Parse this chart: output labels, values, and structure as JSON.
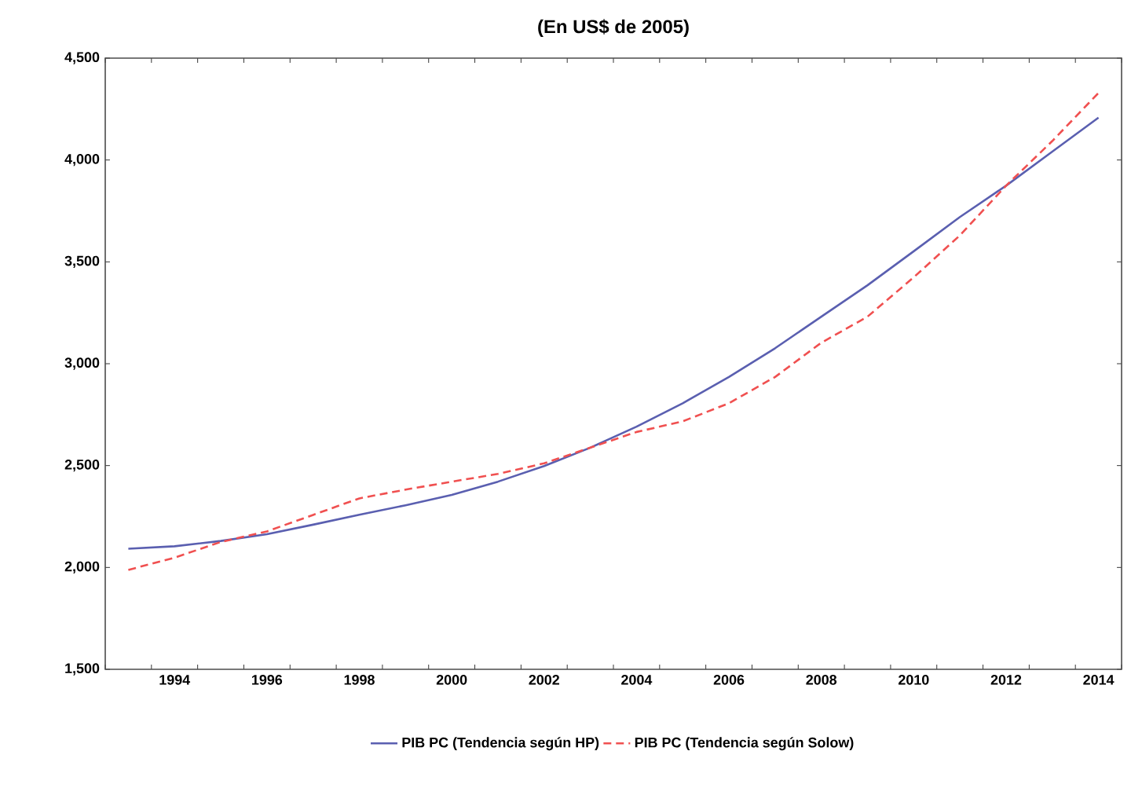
{
  "chart_data": {
    "type": "line",
    "title": "(En US$ de 2005)",
    "x": [
      1993,
      1994,
      1995,
      1996,
      1997,
      1998,
      1999,
      2000,
      2001,
      2002,
      2003,
      2004,
      2005,
      2006,
      2007,
      2008,
      2009,
      2010,
      2011,
      2012,
      2013,
      2014
    ],
    "series": [
      {
        "name": "PIB PC (Tendencia según HP)",
        "color": "#5a5fb0",
        "line_style": "solid",
        "values": [
          2092,
          2104,
          2130,
          2163,
          2210,
          2259,
          2305,
          2356,
          2421,
          2498,
          2588,
          2691,
          2806,
          2935,
          3076,
          3231,
          3385,
          3552,
          3720,
          3874,
          4041,
          4208
        ]
      },
      {
        "name": "PIB PC (Tendencia según Solow)",
        "color": "#f05050",
        "line_style": "dashed",
        "values": [
          1988,
          2048,
          2125,
          2177,
          2258,
          2339,
          2382,
          2421,
          2459,
          2511,
          2588,
          2665,
          2717,
          2806,
          2935,
          3103,
          3231,
          3424,
          3630,
          3874,
          4093,
          4329
        ]
      }
    ],
    "xlim": [
      1992.5,
      2014.5
    ],
    "xticks": [
      {
        "value": 1994,
        "label": "1994"
      },
      {
        "value": 1996,
        "label": "1996"
      },
      {
        "value": 1998,
        "label": "1998"
      },
      {
        "value": 2000,
        "label": "2000"
      },
      {
        "value": 2002,
        "label": "2002"
      },
      {
        "value": 2004,
        "label": "2004"
      },
      {
        "value": 2006,
        "label": "2006"
      },
      {
        "value": 2008,
        "label": "2008"
      },
      {
        "value": 2010,
        "label": "2010"
      },
      {
        "value": 2012,
        "label": "2012"
      },
      {
        "value": 2014,
        "label": "2014"
      },
      {
        "value": 1992.5,
        "label": null
      },
      {
        "value": 1993.5,
        "label": null
      },
      {
        "value": 1994.5,
        "label": null
      },
      {
        "value": 1995.5,
        "label": null
      },
      {
        "value": 1996.5,
        "label": null
      },
      {
        "value": 1997.5,
        "label": null
      },
      {
        "value": 1998.5,
        "label": null
      },
      {
        "value": 1999.5,
        "label": null
      },
      {
        "value": 2000.5,
        "label": null
      },
      {
        "value": 2001.5,
        "label": null
      },
      {
        "value": 2002.5,
        "label": null
      },
      {
        "value": 2003.5,
        "label": null
      },
      {
        "value": 2004.5,
        "label": null
      },
      {
        "value": 2005.5,
        "label": null
      },
      {
        "value": 2006.5,
        "label": null
      },
      {
        "value": 2007.5,
        "label": null
      },
      {
        "value": 2008.5,
        "label": null
      },
      {
        "value": 2009.5,
        "label": null
      },
      {
        "value": 2010.5,
        "label": null
      },
      {
        "value": 2011.5,
        "label": null
      },
      {
        "value": 2012.5,
        "label": null
      },
      {
        "value": 2013.5,
        "label": null
      },
      {
        "value": 2014.5,
        "label": null
      }
    ],
    "ylim": [
      1500,
      4500
    ],
    "yticks": [
      {
        "value": 1500,
        "label": "1,500"
      },
      {
        "value": 2000,
        "label": "2,000"
      },
      {
        "value": 2500,
        "label": "2,500"
      },
      {
        "value": 3000,
        "label": "3,000"
      },
      {
        "value": 3500,
        "label": "3,500"
      },
      {
        "value": 4000,
        "label": "4,000"
      },
      {
        "value": 4500,
        "label": "4,500"
      }
    ],
    "grid": false,
    "legend": "bottom",
    "marker": "none"
  }
}
